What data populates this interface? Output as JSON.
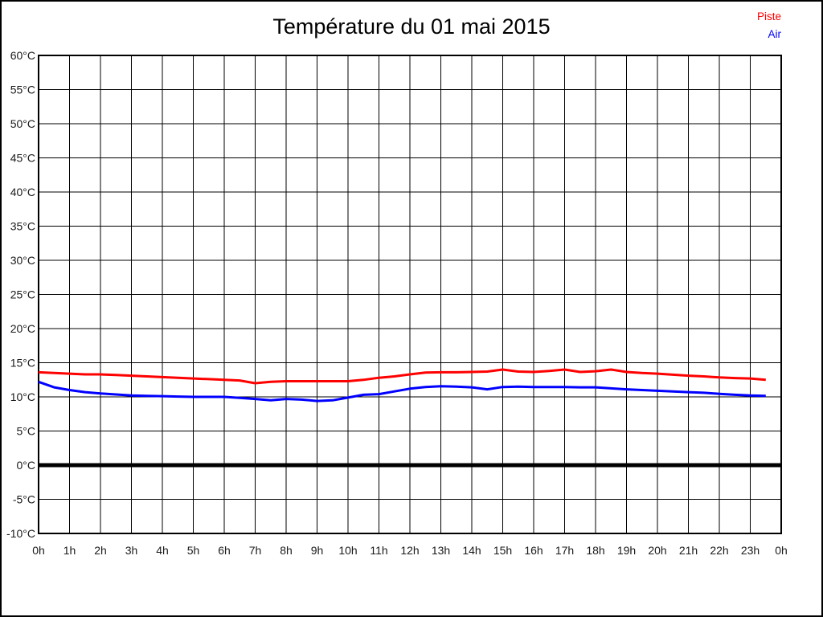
{
  "page": {
    "background": "#ffffff",
    "border_color": "#000000"
  },
  "title": {
    "text": "Température du 01 mai 2015"
  },
  "legend": {
    "position": "top-right",
    "items": [
      {
        "label": "Piste",
        "color": "#ff0000"
      },
      {
        "label": "Air",
        "color": "#0000ff"
      }
    ]
  },
  "chart_data": {
    "type": "line",
    "title": "Température du 01 mai 2015",
    "xlabel": "",
    "ylabel": "",
    "xlim": [
      0,
      24
    ],
    "ylim": [
      -10,
      60
    ],
    "grid": true,
    "grid_color": "#000000",
    "zero_line_value": 0,
    "legend_position": "top-right",
    "x_tick_labels": [
      "0h",
      "1h",
      "2h",
      "3h",
      "4h",
      "5h",
      "6h",
      "7h",
      "8h",
      "9h",
      "10h",
      "11h",
      "12h",
      "13h",
      "14h",
      "15h",
      "16h",
      "17h",
      "18h",
      "19h",
      "20h",
      "21h",
      "22h",
      "23h",
      "0h"
    ],
    "y_ticks": [
      60,
      55,
      50,
      45,
      40,
      35,
      30,
      25,
      20,
      15,
      10,
      5,
      0,
      -5,
      -10
    ],
    "y_tick_labels": [
      "60°C",
      "55°C",
      "50°C",
      "45°C",
      "40°C",
      "35°C",
      "30°C",
      "25°C",
      "20°C",
      "15°C",
      "10°C",
      "5°C",
      "0°C",
      "-5°C",
      "-10°C"
    ],
    "series": [
      {
        "name": "Piste",
        "color": "#ff0000",
        "x": [
          0,
          0.5,
          1,
          1.5,
          2,
          2.5,
          3,
          3.5,
          4,
          4.5,
          5,
          5.5,
          6,
          6.5,
          7,
          7.5,
          8,
          8.5,
          9,
          9.5,
          10,
          10.5,
          11,
          11.5,
          12,
          12.5,
          13,
          13.5,
          14,
          14.5,
          15,
          15.5,
          16,
          16.5,
          17,
          17.5,
          18,
          18.5,
          19,
          19.5,
          20,
          20.5,
          21,
          21.5,
          22,
          22.5,
          23,
          23.5
        ],
        "values": [
          13.6,
          13.5,
          13.4,
          13.3,
          13.3,
          13.2,
          13.1,
          13.0,
          12.9,
          12.8,
          12.7,
          12.6,
          12.5,
          12.4,
          12.0,
          12.2,
          12.3,
          12.3,
          12.3,
          12.3,
          12.3,
          12.5,
          12.8,
          13.0,
          13.3,
          13.55,
          13.6,
          13.6,
          13.65,
          13.7,
          14.0,
          13.7,
          13.65,
          13.8,
          14.0,
          13.65,
          13.75,
          14.0,
          13.65,
          13.5,
          13.4,
          13.25,
          13.1,
          13.0,
          12.85,
          12.75,
          12.7,
          12.5
        ]
      },
      {
        "name": "Air",
        "color": "#0000ff",
        "x": [
          0,
          0.5,
          1,
          1.5,
          2,
          2.5,
          3,
          3.5,
          4,
          4.5,
          5,
          5.5,
          6,
          6.5,
          7,
          7.5,
          8,
          8.5,
          9,
          9.5,
          10,
          10.5,
          11,
          11.5,
          12,
          12.5,
          13,
          13.5,
          14,
          14.5,
          15,
          15.5,
          16,
          16.5,
          17,
          17.5,
          18,
          18.5,
          19,
          19.5,
          20,
          20.5,
          21,
          21.5,
          22,
          22.5,
          23,
          23.5
        ],
        "values": [
          12.2,
          11.4,
          11.0,
          10.7,
          10.5,
          10.35,
          10.2,
          10.15,
          10.1,
          10.05,
          10.0,
          10.0,
          10.0,
          9.85,
          9.7,
          9.5,
          9.7,
          9.6,
          9.4,
          9.5,
          9.9,
          10.3,
          10.4,
          10.8,
          11.2,
          11.45,
          11.55,
          11.5,
          11.4,
          11.1,
          11.45,
          11.5,
          11.45,
          11.45,
          11.45,
          11.4,
          11.4,
          11.25,
          11.1,
          11.0,
          10.9,
          10.8,
          10.7,
          10.6,
          10.45,
          10.3,
          10.2,
          10.15
        ]
      }
    ]
  }
}
